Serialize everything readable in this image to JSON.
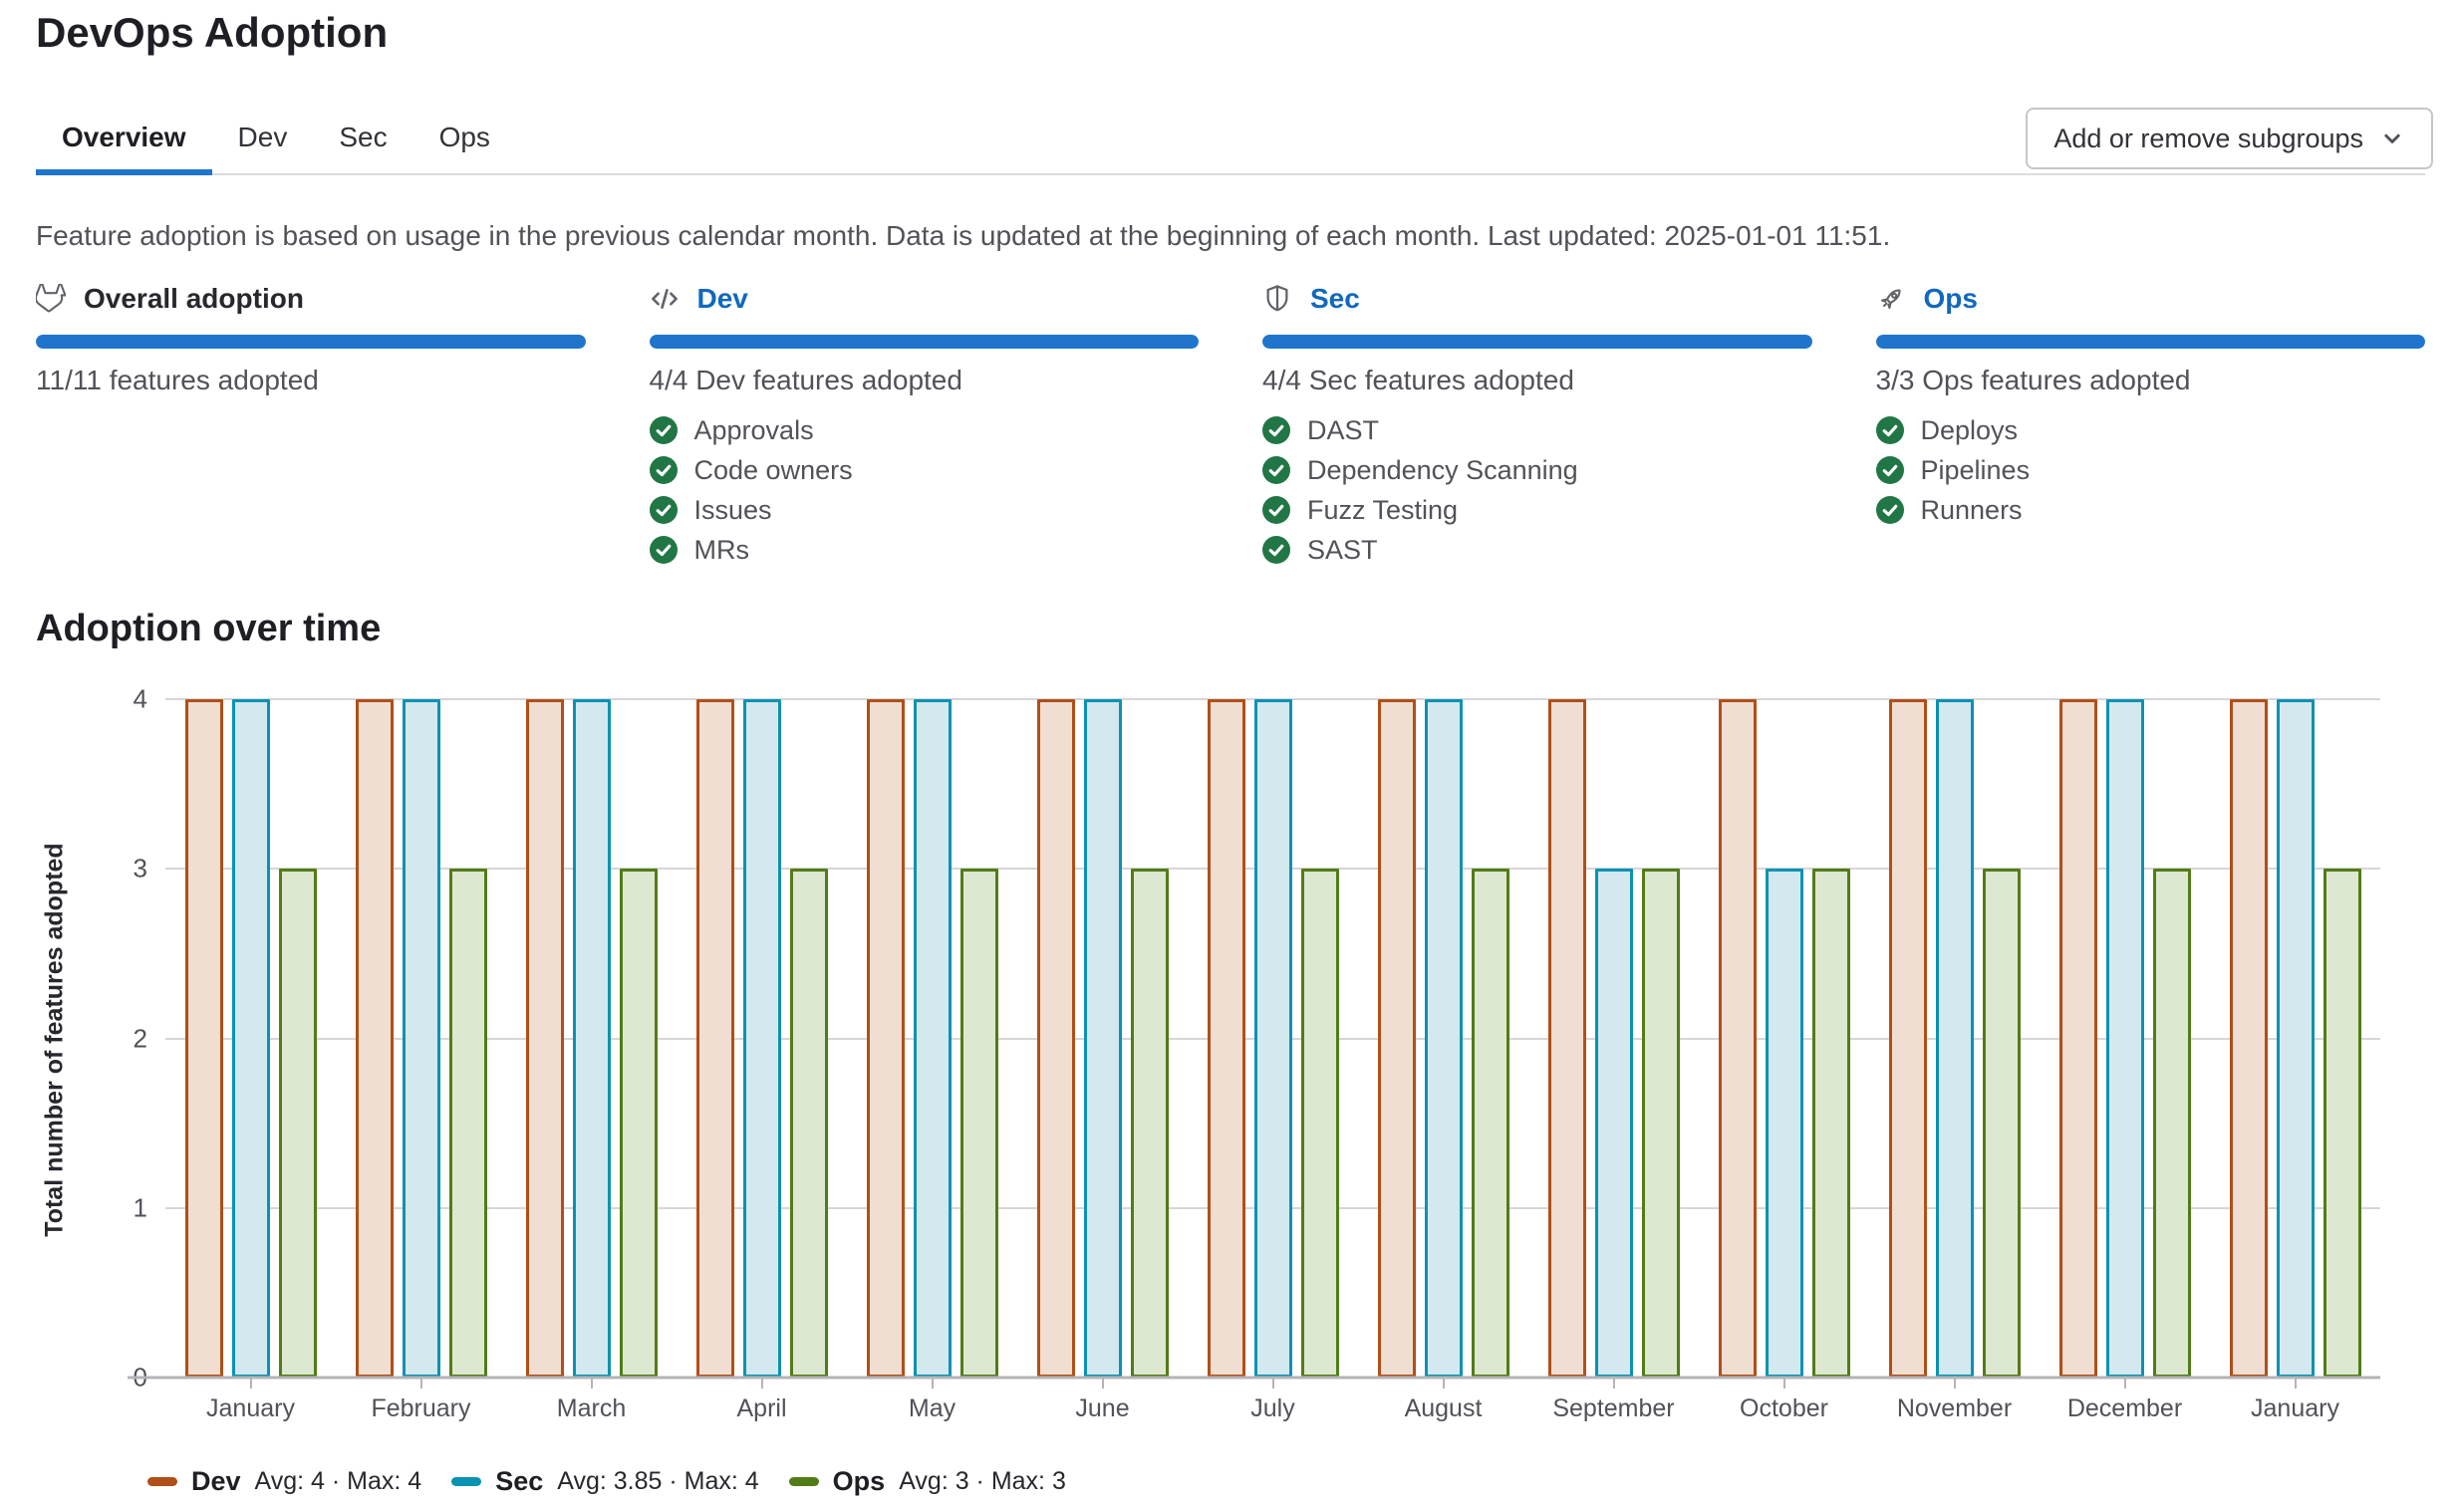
{
  "header": {
    "title": "DevOps Adoption"
  },
  "tabs": [
    {
      "label": "Overview",
      "active": true
    },
    {
      "label": "Dev",
      "active": false
    },
    {
      "label": "Sec",
      "active": false
    },
    {
      "label": "Ops",
      "active": false
    }
  ],
  "toolbar": {
    "add_remove_label": "Add or remove subgroups",
    "icon": "chevron-down-icon"
  },
  "description": "Feature adoption is based on usage in the previous calendar month. Data is updated at the beginning of each month. Last updated: 2025-01-01 11:51.",
  "cards": [
    {
      "title": "Overall adoption",
      "icon": "tanuki-icon",
      "subtitle": "11/11 features adopted",
      "progress_percent": 100,
      "features": []
    },
    {
      "title": "Dev",
      "icon": "code-icon",
      "subtitle": "4/4 Dev features adopted",
      "progress_percent": 100,
      "features": [
        "Approvals",
        "Code owners",
        "Issues",
        "MRs"
      ]
    },
    {
      "title": "Sec",
      "icon": "shield-icon",
      "subtitle": "4/4 Sec features adopted",
      "progress_percent": 100,
      "features": [
        "DAST",
        "Dependency Scanning",
        "Fuzz Testing",
        "SAST"
      ]
    },
    {
      "title": "Ops",
      "icon": "rocket-icon",
      "subtitle": "3/3 Ops features adopted",
      "progress_percent": 100,
      "features": [
        "Deploys",
        "Pipelines",
        "Runners"
      ]
    }
  ],
  "section": {
    "heading": "Adoption over time"
  },
  "chart_data": {
    "type": "bar",
    "title": "Adoption over time",
    "xlabel": "",
    "ylabel": "Total number of features adopted",
    "ylim": [
      0,
      4
    ],
    "yticks": [
      0,
      1,
      2,
      3,
      4
    ],
    "grid": true,
    "legend_position": "bottom-left",
    "categories": [
      "January",
      "February",
      "March",
      "April",
      "May",
      "June",
      "July",
      "August",
      "September",
      "October",
      "November",
      "December",
      "January"
    ],
    "series": [
      {
        "name": "Dev",
        "stats": "Avg: 4 · Max: 4",
        "color": "#b14f18",
        "fill": "#f1ded2",
        "values": [
          4,
          4,
          4,
          4,
          4,
          4,
          4,
          4,
          4,
          4,
          4,
          4,
          4
        ]
      },
      {
        "name": "Sec",
        "stats": "Avg: 3.85 · Max: 4",
        "color": "#0a93b1",
        "fill": "#d3e8ef",
        "values": [
          4,
          4,
          4,
          4,
          4,
          4,
          4,
          4,
          3,
          3,
          4,
          4,
          4
        ]
      },
      {
        "name": "Ops",
        "stats": "Avg: 3 · Max: 3",
        "color": "#527c17",
        "fill": "#dde8d1",
        "values": [
          3,
          3,
          3,
          3,
          3,
          3,
          3,
          3,
          3,
          3,
          3,
          3,
          3
        ]
      }
    ]
  },
  "colors": {
    "accent": "#1f75cb",
    "link": "#1068bf",
    "check-green": "#217645"
  }
}
